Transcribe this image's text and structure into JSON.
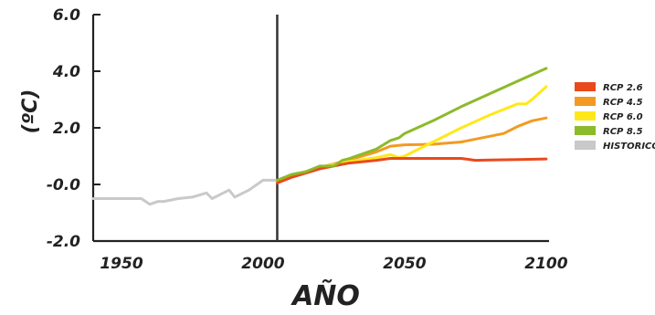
{
  "chart_data": {
    "type": "line",
    "xlabel": "AÑO",
    "ylabel": "(ºC)",
    "xlim": [
      1940,
      2101
    ],
    "ylim": [
      -2.0,
      6.0
    ],
    "x_ticks": [
      "1950",
      "2000",
      "2050",
      "2100"
    ],
    "y_ticks": [
      "6.0",
      "4.0",
      "2.0",
      "-0.0",
      "-2.0"
    ],
    "y_tick_values": [
      6,
      4,
      2,
      0,
      -2
    ],
    "x_tick_values": [
      1950,
      2000,
      2050,
      2100
    ],
    "divider_year": 2005,
    "legend_position": "right",
    "series": [
      {
        "name": "RCP 2.6",
        "color": "#e84a1c",
        "x": [
          2005,
          2010,
          2020,
          2030,
          2040,
          2045,
          2050,
          2060,
          2070,
          2075,
          2080,
          2090,
          2100
        ],
        "y": [
          0.05,
          0.25,
          0.55,
          0.75,
          0.85,
          0.92,
          0.92,
          0.92,
          0.92,
          0.85,
          0.86,
          0.88,
          0.9
        ]
      },
      {
        "name": "RCP 4.5",
        "color": "#f39a23",
        "x": [
          2005,
          2010,
          2020,
          2030,
          2040,
          2045,
          2050,
          2060,
          2070,
          2080,
          2085,
          2090,
          2095,
          2100
        ],
        "y": [
          0.1,
          0.3,
          0.6,
          0.85,
          1.15,
          1.35,
          1.4,
          1.42,
          1.5,
          1.7,
          1.8,
          2.05,
          2.25,
          2.35
        ]
      },
      {
        "name": "RCP 6.0",
        "color": "#ffe81a",
        "x": [
          2005,
          2010,
          2020,
          2030,
          2040,
          2045,
          2048,
          2050,
          2060,
          2070,
          2080,
          2090,
          2093,
          2095,
          2100
        ],
        "y": [
          0.1,
          0.3,
          0.6,
          0.8,
          0.95,
          1.05,
          0.95,
          1.0,
          1.5,
          2.0,
          2.45,
          2.85,
          2.85,
          3.0,
          3.45
        ]
      },
      {
        "name": "RCP 8.5",
        "color": "#8cba2a",
        "x": [
          2005,
          2010,
          2015,
          2020,
          2025,
          2028,
          2030,
          2040,
          2045,
          2048,
          2050,
          2060,
          2070,
          2080,
          2090,
          2100
        ],
        "y": [
          0.15,
          0.35,
          0.45,
          0.65,
          0.65,
          0.85,
          0.9,
          1.25,
          1.55,
          1.65,
          1.8,
          2.25,
          2.75,
          3.2,
          3.65,
          4.1
        ]
      },
      {
        "name": "HISTORICO",
        "color": "#c9c9c9",
        "x": [
          1940,
          1945,
          1950,
          1957,
          1960,
          1963,
          1965,
          1970,
          1975,
          1980,
          1982,
          1985,
          1988,
          1990,
          1995,
          2000,
          2005
        ],
        "y": [
          -0.5,
          -0.5,
          -0.5,
          -0.5,
          -0.7,
          -0.6,
          -0.6,
          -0.5,
          -0.45,
          -0.3,
          -0.5,
          -0.35,
          -0.2,
          -0.45,
          -0.2,
          0.15,
          0.15
        ]
      }
    ]
  }
}
